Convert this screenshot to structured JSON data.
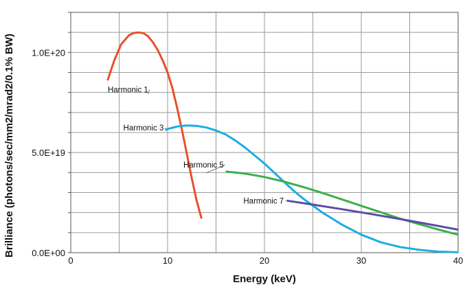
{
  "chart_data": {
    "type": "line",
    "title": "",
    "xlabel": "Energy (keV)",
    "ylabel": "Brilliance (photons/sec/mm2/mrad2/0.1% BW)",
    "xlim": [
      0,
      40
    ],
    "ylim": [
      0,
      1.2e+20
    ],
    "x_ticks": [
      0,
      10,
      20,
      30,
      40
    ],
    "x_tick_labels": [
      "0",
      "10",
      "20",
      "30",
      "40"
    ],
    "y_ticks": [
      0,
      5e+19,
      1e+20
    ],
    "y_tick_labels": [
      "0.0E+00",
      "5.0E+19",
      "1.0E+20"
    ],
    "grid": true,
    "legend": "none",
    "series": [
      {
        "name": "Harmonic 1",
        "color": "#e8502a",
        "x": [
          3.8,
          4.5,
          5.2,
          6.0,
          6.5,
          7.0,
          7.5,
          8.0,
          8.5,
          9.0,
          9.5,
          10.0,
          10.5,
          11.0,
          11.5,
          12.0,
          12.5,
          13.0,
          13.5
        ],
        "y": [
          8.6e+19,
          9.6e+19,
          1.04e+20,
          1.085e+20,
          1.097e+20,
          1.1e+20,
          1.096e+20,
          1.08e+20,
          1.05e+20,
          1.01e+20,
          9.6e+19,
          9e+19,
          8.2e+19,
          7.2e+19,
          6.1e+19,
          4.9e+19,
          3.7e+19,
          2.6e+19,
          1.7e+19
        ]
      },
      {
        "name": "Harmonic 3",
        "color": "#1aaee0",
        "x": [
          9.8,
          11.0,
          12.0,
          13.0,
          14.0,
          15.0,
          16.0,
          17.0,
          18.0,
          19.0,
          20.0,
          21.0,
          22.0,
          23.0,
          24.0,
          25.0,
          26.0,
          27.0,
          28.0,
          30.0,
          32.0,
          34.0,
          36.0,
          38.0,
          40.0
        ],
        "y": [
          6.15e+19,
          6.3e+19,
          6.35e+19,
          6.33e+19,
          6.25e+19,
          6.1e+19,
          5.9e+19,
          5.6e+19,
          5.25e+19,
          4.85e+19,
          4.45e+19,
          4e+19,
          3.55e+19,
          3.1e+19,
          2.7e+19,
          2.35e+19,
          2e+19,
          1.7e+19,
          1.4e+19,
          9e+18,
          5.2e+18,
          2.8e+18,
          1.4e+18,
          5e+17,
          2e+17
        ]
      },
      {
        "name": "Harmonic 5",
        "color": "#3ab04a",
        "x": [
          16.0,
          18.0,
          20.0,
          22.0,
          24.0,
          26.0,
          28.0,
          30.0,
          32.0,
          34.0,
          36.0,
          38.0,
          40.0
        ],
        "y": [
          4.05e+19,
          3.95e+19,
          3.78e+19,
          3.55e+19,
          3.28e+19,
          2.98e+19,
          2.66e+19,
          2.34e+19,
          2.02e+19,
          1.7e+19,
          1.42e+19,
          1.15e+19,
          9e+18
        ]
      },
      {
        "name": "Harmonic 7",
        "color": "#5e4aa8",
        "x": [
          22.3,
          25.0,
          28.0,
          31.0,
          34.0,
          37.0,
          40.0
        ],
        "y": [
          2.6e+19,
          2.4e+19,
          2.17e+19,
          1.93e+19,
          1.68e+19,
          1.42e+19,
          1.15e+19
        ]
      }
    ],
    "annotations": [
      {
        "text": "Harmonic 1",
        "series": 0,
        "x": 8.0,
        "y": 8e+19
      },
      {
        "text": "Harmonic 3",
        "series": 1,
        "x": 9.6,
        "y": 6.1e+19
      },
      {
        "text": "Harmonic 5",
        "series": 2,
        "x": 15.8,
        "y": 4.25e+19
      },
      {
        "text": "Harmonic 7",
        "series": 3,
        "x": 22.0,
        "y": 2.45e+19
      }
    ]
  }
}
